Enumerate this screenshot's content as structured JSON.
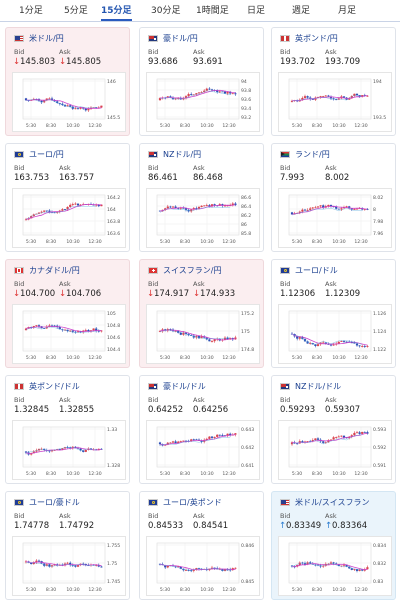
{
  "tabs": [
    {
      "label": "1分足"
    },
    {
      "label": "5分足"
    },
    {
      "label": "15分足",
      "active": true
    },
    {
      "label": "30分足"
    },
    {
      "label": "1時間足"
    },
    {
      "label": "日足"
    },
    {
      "label": "週足"
    },
    {
      "label": "月足"
    }
  ],
  "labels": {
    "bid": "Bid",
    "ask": "Ask"
  },
  "x_ticks": [
    "5:30",
    "8:30",
    "10:30",
    "12:30"
  ],
  "colors": {
    "up_candle": "#d9434f",
    "down_candle": "#2b4fb5",
    "moving_average": "#cc44cc",
    "line": "#55aadd",
    "down_card_bg": "#fbeef0",
    "up_card_bg": "#eaf4fb"
  },
  "cards": [
    {
      "name": "米ドル/円",
      "flag": "us-flag-icon",
      "bid": "145.803",
      "ask": "145.805",
      "trend": "down",
      "y_ticks": [
        "146",
        "145.5"
      ]
    },
    {
      "name": "豪ドル/円",
      "flag": "au-flag-icon",
      "bid": "93.686",
      "ask": "93.691",
      "trend": "",
      "y_ticks": [
        "94",
        "93.8",
        "93.6",
        "93.4",
        "93.2"
      ]
    },
    {
      "name": "英ポンド/円",
      "flag": "gb-flag-icon",
      "bid": "193.702",
      "ask": "193.709",
      "trend": "",
      "y_ticks": [
        "194",
        "193.5"
      ]
    },
    {
      "name": "ユーロ/円",
      "flag": "eu-flag-icon",
      "bid": "163.753",
      "ask": "163.757",
      "trend": "",
      "y_ticks": [
        "164.2",
        "164",
        "163.8",
        "163.6"
      ]
    },
    {
      "name": "NZドル/円",
      "flag": "nz-flag-icon",
      "bid": "86.461",
      "ask": "86.468",
      "trend": "",
      "y_ticks": [
        "86.6",
        "86.4",
        "86.2",
        "86",
        "85.8"
      ]
    },
    {
      "name": "ランド/円",
      "flag": "za-flag-icon",
      "bid": "7.993",
      "ask": "8.002",
      "trend": "",
      "y_ticks": [
        "8.02",
        "8",
        "7.98",
        "7.96"
      ]
    },
    {
      "name": "カナダドル/円",
      "flag": "ca-flag-icon",
      "bid": "104.700",
      "ask": "104.706",
      "trend": "down",
      "y_ticks": [
        "105",
        "104.8",
        "104.6",
        "104.4"
      ]
    },
    {
      "name": "スイスフラン/円",
      "flag": "ch-flag-icon",
      "bid": "174.917",
      "ask": "174.933",
      "trend": "down",
      "y_ticks": [
        "175.2",
        "175",
        "174.8"
      ]
    },
    {
      "name": "ユーロ/ドル",
      "flag": "eu-flag-icon",
      "bid": "1.12306",
      "ask": "1.12309",
      "trend": "",
      "y_ticks": [
        "1.126",
        "1.124",
        "1.122"
      ]
    },
    {
      "name": "英ポンド/ドル",
      "flag": "gb-flag-icon",
      "bid": "1.32845",
      "ask": "1.32855",
      "trend": "",
      "y_ticks": [
        "1.33",
        "1.328"
      ]
    },
    {
      "name": "豪ドル/ドル",
      "flag": "au-flag-icon",
      "bid": "0.64252",
      "ask": "0.64256",
      "trend": "",
      "y_ticks": [
        "0.643",
        "0.642",
        "0.641"
      ]
    },
    {
      "name": "NZドル/ドル",
      "flag": "nz-flag-icon",
      "bid": "0.59293",
      "ask": "0.59307",
      "trend": "",
      "y_ticks": [
        "0.593",
        "0.592",
        "0.591"
      ]
    },
    {
      "name": "ユーロ/豪ドル",
      "flag": "eu-flag-icon",
      "bid": "1.74778",
      "ask": "1.74792",
      "trend": "",
      "y_ticks": [
        "1.755",
        "1.75",
        "1.745"
      ]
    },
    {
      "name": "ユーロ/英ポンド",
      "flag": "eu-flag-icon",
      "bid": "0.84533",
      "ask": "0.84541",
      "trend": "",
      "y_ticks": [
        "0.846",
        "0.845"
      ]
    },
    {
      "name": "米ドル/スイスフラン",
      "flag": "us-flag-icon",
      "bid": "0.83349",
      "ask": "0.83364",
      "trend": "up",
      "y_ticks": [
        "0.834",
        "0.832",
        "0.83"
      ]
    }
  ]
}
